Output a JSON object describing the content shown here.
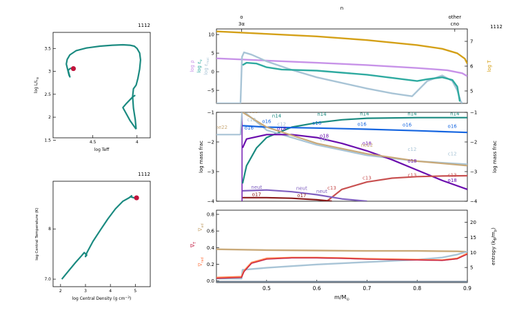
{
  "chart_data": [
    {
      "type": "line",
      "panel": "hr",
      "model_number": "1112",
      "xlabel": "log Teff",
      "ylabel": "log L/L",
      "ylabel_subscript": "⊙",
      "x_reversed": true,
      "xlim": [
        4.95,
        3.85
      ],
      "ylim": [
        1.55,
        3.85
      ],
      "xticks": [
        {
          "v": 4.5,
          "label": "4.5"
        },
        {
          "v": 4.0,
          "label": "4"
        }
      ],
      "yticks": [
        {
          "v": 1.5,
          "label": "1.5"
        },
        {
          "v": 2.0,
          "label": "2"
        },
        {
          "v": 2.5,
          "label": "2.5"
        },
        {
          "v": 3.0,
          "label": "3"
        },
        {
          "v": 3.5,
          "label": "3.5"
        }
      ],
      "track_color": "#1a8a80",
      "marker_color": "#c0143c",
      "series": [
        {
          "x": [
            4.02,
            4.05,
            4.08,
            4.12,
            4.16,
            4.12,
            4.08,
            4.04,
            4.01
          ],
          "y": [
            2.48,
            2.44,
            2.38,
            2.3,
            2.21,
            2.07,
            1.93,
            1.82,
            1.74
          ]
        },
        {
          "x": [
            4.01,
            4.02,
            4.04,
            4.05,
            4.04,
            4.01,
            3.99,
            3.97,
            3.96,
            3.97,
            4.0,
            4.03,
            4.08,
            4.16,
            4.28,
            4.42,
            4.57,
            4.69,
            4.76,
            4.79,
            4.8,
            4.79,
            4.78,
            4.77,
            4.76,
            4.77,
            4.78,
            4.76,
            4.74,
            4.72
          ],
          "y": [
            1.74,
            1.95,
            2.2,
            2.45,
            2.62,
            2.7,
            2.85,
            3.05,
            3.25,
            3.4,
            3.5,
            3.55,
            3.57,
            3.58,
            3.57,
            3.55,
            3.51,
            3.45,
            3.36,
            3.26,
            3.16,
            3.08,
            3.0,
            2.92,
            2.88,
            2.95,
            3.02,
            3.06,
            3.07,
            3.06
          ]
        }
      ],
      "current_point": {
        "x": 4.72,
        "y": 3.06
      }
    },
    {
      "type": "line",
      "panel": "center",
      "model_number": "1112",
      "xlabel": "log Central Density (g cm",
      "xlabel_sup": "−3",
      "xlabel_close": ")",
      "ylabel": "log Central Temperature (K)",
      "xlim": [
        1.7,
        5.6
      ],
      "ylim": [
        6.85,
        8.95
      ],
      "xticks": [
        {
          "v": 2,
          "label": "2"
        },
        {
          "v": 3,
          "label": "3"
        },
        {
          "v": 4,
          "label": "4"
        },
        {
          "v": 5,
          "label": "5"
        }
      ],
      "yticks": [
        {
          "v": 7,
          "label": "7.0"
        },
        {
          "v": 8,
          "label": "8"
        }
      ],
      "track_color": "#1a8a80",
      "marker_color": "#c0143c",
      "series": [
        {
          "x": [
            2.05,
            2.3,
            2.6,
            2.85,
            2.95,
            3.05,
            3.0,
            3.05,
            3.3,
            3.6,
            3.9,
            4.2,
            4.5,
            4.75,
            4.85,
            4.8,
            4.95,
            5.05
          ],
          "y": [
            7.0,
            7.15,
            7.33,
            7.47,
            7.53,
            7.48,
            7.45,
            7.52,
            7.75,
            7.98,
            8.2,
            8.4,
            8.55,
            8.62,
            8.66,
            8.64,
            8.62,
            8.62
          ]
        }
      ],
      "current_point": {
        "x": 5.05,
        "y": 8.62
      }
    },
    {
      "type": "line",
      "panel": "profile-top",
      "model_number": "1112",
      "top_axis_title": "n",
      "top_labels": [
        {
          "x": 0.45,
          "line1": "o",
          "line2": "3α"
        },
        {
          "x": 0.875,
          "line1": "other",
          "line2": "cno"
        }
      ],
      "left_labels": [
        {
          "text": "log ρ",
          "color": "#c792e8"
        },
        {
          "text": "log ε",
          "sub": "ν",
          "color": "#2eaaa0"
        },
        {
          "text": "log ε",
          "sub": "nuc",
          "color": "#a8c4d6"
        }
      ],
      "right_label": {
        "text": "log T",
        "color": "#d4a017"
      },
      "xlim": [
        0.4,
        0.9
      ],
      "ylim_left": [
        -8.5,
        11.5
      ],
      "ylim_right": [
        4.5,
        7.5
      ],
      "yticks_left": [
        {
          "v": 10,
          "label": "10"
        },
        {
          "v": 5,
          "label": "5"
        },
        {
          "v": 0,
          "label": "0"
        },
        {
          "v": -5,
          "label": "−5"
        }
      ],
      "yticks_right": [
        {
          "v": 5,
          "label": "5"
        },
        {
          "v": 6,
          "label": "6"
        },
        {
          "v": 7,
          "label": "7"
        }
      ],
      "series": [
        {
          "name": "log T",
          "axis": "right",
          "color": "#d4a017",
          "x": [
            0.4,
            0.5,
            0.6,
            0.7,
            0.8,
            0.85,
            0.88,
            0.895,
            0.9
          ],
          "y": [
            7.4,
            7.3,
            7.2,
            7.05,
            6.85,
            6.7,
            6.52,
            6.3,
            6.1
          ]
        },
        {
          "name": "log ρ",
          "axis": "left",
          "color": "#c792e8",
          "x": [
            0.4,
            0.5,
            0.6,
            0.7,
            0.8,
            0.86,
            0.89,
            0.9
          ],
          "y": [
            3.6,
            3.0,
            2.4,
            1.8,
            1.0,
            0.4,
            -0.4,
            -1.2
          ]
        },
        {
          "name": "log ε nuc",
          "axis": "left",
          "color": "#a8c4d6",
          "x": [
            0.4,
            0.448,
            0.451,
            0.455,
            0.47,
            0.5,
            0.55,
            0.6,
            0.65,
            0.7,
            0.75,
            0.79,
            0.82,
            0.85,
            0.87,
            0.88,
            0.887,
            0.89
          ],
          "y": [
            -8.5,
            -8.5,
            4.0,
            5.2,
            4.6,
            2.8,
            0.5,
            -1.5,
            -3.0,
            -4.5,
            -5.8,
            -6.6,
            -2.5,
            -1.0,
            -2.5,
            -5.0,
            -8.0,
            -8.5
          ]
        },
        {
          "name": "log ε ν",
          "axis": "left",
          "color": "#2eaaa0",
          "x": [
            0.452,
            0.46,
            0.48,
            0.5,
            0.53,
            0.6,
            0.7,
            0.8,
            0.82,
            0.85,
            0.87,
            0.88,
            0.885
          ],
          "y": [
            1.8,
            2.4,
            2.2,
            1.2,
            0.6,
            0.3,
            -0.8,
            -2.5,
            -2.0,
            -1.5,
            -2.2,
            -4.0,
            -8.0
          ]
        }
      ]
    },
    {
      "type": "line",
      "panel": "profile-mid",
      "ylabel_left": "log mass frac",
      "ylabel_right": "log mass frac",
      "xlim": [
        0.4,
        0.9
      ],
      "ylim": [
        -4,
        -1
      ],
      "yticks": [
        {
          "v": -1,
          "label": "−1"
        },
        {
          "v": -2,
          "label": "−2"
        },
        {
          "v": -3,
          "label": "−3"
        },
        {
          "v": -4,
          "label": "−4"
        }
      ],
      "series": [
        {
          "name": "n14",
          "color": "#1a8a80",
          "x": [
            0.452,
            0.46,
            0.48,
            0.5,
            0.55,
            0.6,
            0.65,
            0.7,
            0.8,
            0.9
          ],
          "y": [
            -3.4,
            -2.8,
            -2.2,
            -1.85,
            -1.5,
            -1.35,
            -1.25,
            -1.2,
            -1.18,
            -1.18
          ]
        },
        {
          "name": "c12",
          "color": "#a8c4d6",
          "x": [
            0.4,
            0.448,
            0.451,
            0.46,
            0.5,
            0.6,
            0.7,
            0.8,
            0.9
          ],
          "y": [
            -1.75,
            -1.75,
            -1.0,
            -1.05,
            -1.6,
            -2.1,
            -2.45,
            -2.65,
            -2.75
          ]
        },
        {
          "name": "o16",
          "color": "#1565e0",
          "x": [
            0.452,
            0.5,
            0.6,
            0.7,
            0.8,
            0.9
          ],
          "y": [
            -1.45,
            -1.5,
            -1.53,
            -1.57,
            -1.62,
            -1.68
          ]
        },
        {
          "name": "o18",
          "color": "#6a0dad",
          "x": [
            0.452,
            0.46,
            0.5,
            0.55,
            0.6,
            0.65,
            0.7,
            0.75,
            0.8,
            0.85,
            0.9
          ],
          "y": [
            -2.2,
            -1.9,
            -1.75,
            -1.75,
            -1.85,
            -2.05,
            -2.3,
            -2.6,
            -2.95,
            -3.3,
            -3.6
          ]
        },
        {
          "name": "c13",
          "color": "#c85050",
          "x": [
            0.62,
            0.65,
            0.7,
            0.75,
            0.8,
            0.85,
            0.9
          ],
          "y": [
            -4.0,
            -3.6,
            -3.35,
            -3.22,
            -3.17,
            -3.15,
            -3.14
          ]
        },
        {
          "name": "ne22",
          "color": "#c9a978",
          "x": [
            0.452,
            0.5,
            0.6,
            0.7,
            0.8,
            0.9
          ],
          "y": [
            -1.0,
            -1.5,
            -2.05,
            -2.4,
            -2.65,
            -2.8
          ]
        },
        {
          "name": "neut",
          "color": "#8060c0",
          "x": [
            0.452,
            0.5,
            0.55,
            0.6,
            0.65,
            0.7
          ],
          "y": [
            -3.65,
            -3.62,
            -3.68,
            -3.78,
            -3.92,
            -4.0
          ]
        },
        {
          "name": "o17",
          "color": "#8b1a1a",
          "x": [
            0.452,
            0.5,
            0.55,
            0.6,
            0.63
          ],
          "y": [
            -3.88,
            -3.88,
            -3.9,
            -3.95,
            -4.0
          ]
        }
      ],
      "labels": [
        {
          "text": "ne22",
          "color": "#c9a978",
          "x": 0.47,
          "y": -1.02
        },
        {
          "text": "n14",
          "color": "#1a8a80",
          "x": 0.52,
          "y": -1.18
        },
        {
          "text": "n14",
          "color": "#1a8a80",
          "x": 0.61,
          "y": -1.12
        },
        {
          "text": "n14",
          "color": "#1a8a80",
          "x": 0.695,
          "y": -1.1
        },
        {
          "text": "n14",
          "color": "#1a8a80",
          "x": 0.79,
          "y": -1.1
        },
        {
          "text": "n14",
          "color": "#1a8a80",
          "x": 0.875,
          "y": -1.1
        },
        {
          "text": "c12",
          "color": "#a8c4d6",
          "x": 0.47,
          "y": -1.3
        },
        {
          "text": "o16",
          "color": "#1565e0",
          "x": 0.5,
          "y": -1.36
        },
        {
          "text": "o16",
          "color": "#1565e0",
          "x": 0.6,
          "y": -1.42
        },
        {
          "text": "o16",
          "color": "#1565e0",
          "x": 0.69,
          "y": -1.45
        },
        {
          "text": "o16",
          "color": "#1565e0",
          "x": 0.78,
          "y": -1.48
        },
        {
          "text": "o16",
          "color": "#1565e0",
          "x": 0.87,
          "y": -1.52
        },
        {
          "text": "ne22",
          "color": "#c9a978",
          "x": 0.41,
          "y": -1.56
        },
        {
          "text": "o16",
          "color": "#1565e0",
          "x": 0.465,
          "y": -1.58
        },
        {
          "text": "c12",
          "color": "#a8c4d6",
          "x": 0.53,
          "y": -1.45
        },
        {
          "text": "o18",
          "color": "#6a0dad",
          "x": 0.53,
          "y": -1.6
        },
        {
          "text": "o18",
          "color": "#6a0dad",
          "x": 0.615,
          "y": -1.85
        },
        {
          "text": "c12",
          "color": "#a8c4d6",
          "x": 0.615,
          "y": -1.98
        },
        {
          "text": "o18",
          "color": "#6a0dad",
          "x": 0.7,
          "y": -2.1
        },
        {
          "text": "ne22",
          "color": "#c9a978",
          "x": 0.7,
          "y": -2.16
        },
        {
          "text": "c12",
          "color": "#a8c4d6",
          "x": 0.79,
          "y": -2.3
        },
        {
          "text": "c12",
          "color": "#a8c4d6",
          "x": 0.87,
          "y": -2.45
        },
        {
          "text": "o18",
          "color": "#6a0dad",
          "x": 0.79,
          "y": -2.7
        },
        {
          "text": "c13",
          "color": "#c85050",
          "x": 0.7,
          "y": -3.27
        },
        {
          "text": "c13",
          "color": "#c85050",
          "x": 0.79,
          "y": -3.18
        },
        {
          "text": "c13",
          "color": "#c85050",
          "x": 0.87,
          "y": -3.18
        },
        {
          "text": "o18",
          "color": "#6a0dad",
          "x": 0.87,
          "y": -3.35
        },
        {
          "text": "c13",
          "color": "#c85050",
          "x": 0.63,
          "y": -3.6
        },
        {
          "text": "neut",
          "color": "#8060c0",
          "x": 0.48,
          "y": -3.58
        },
        {
          "text": "neut",
          "color": "#8060c0",
          "x": 0.57,
          "y": -3.62
        },
        {
          "text": "neut",
          "color": "#8060c0",
          "x": 0.61,
          "y": -3.72
        },
        {
          "text": "o17",
          "color": "#8b1a1a",
          "x": 0.48,
          "y": -3.82
        },
        {
          "text": "o17",
          "color": "#8b1a1a",
          "x": 0.57,
          "y": -3.86
        }
      ]
    },
    {
      "type": "line",
      "panel": "profile-bottom",
      "xlabel": "m/M",
      "xlabel_sub": "⊙",
      "left_label_top": {
        "text": "∇",
        "sub": "ad",
        "color": "#c9a978"
      },
      "left_label_mid": {
        "text": "∇",
        "sub": "T",
        "color": "#c0143c"
      },
      "left_label_bot": {
        "text": "∇",
        "sub": "rad",
        "color": "#ff7f50"
      },
      "right_label": "entropy (k",
      "right_label_sub": "B",
      "right_label_mid": "/m",
      "right_label_sub2": "p",
      "right_label_close": ")",
      "xlim": [
        0.4,
        0.9
      ],
      "ylim_left": [
        -0.02,
        0.85
      ],
      "ylim_right": [
        0,
        24
      ],
      "xticks": [
        {
          "v": 0.5,
          "label": "0.5"
        },
        {
          "v": 0.6,
          "label": "0.6"
        },
        {
          "v": 0.7,
          "label": "0.7"
        },
        {
          "v": 0.8,
          "label": "0.8"
        },
        {
          "v": 0.9,
          "label": "0.9"
        }
      ],
      "yticks_left": [
        {
          "v": 0.0,
          "label": "0.0"
        },
        {
          "v": 0.2,
          "label": "0.2"
        },
        {
          "v": 0.4,
          "label": "0.4"
        },
        {
          "v": 0.6,
          "label": "0.6"
        },
        {
          "v": 0.8,
          "label": "0.8"
        }
      ],
      "yticks_right": [
        {
          "v": 5,
          "label": "5"
        },
        {
          "v": 10,
          "label": "10"
        },
        {
          "v": 15,
          "label": "15"
        },
        {
          "v": 20,
          "label": "20"
        }
      ],
      "series": [
        {
          "name": "grad ad",
          "axis": "left",
          "color": "#c9a978",
          "x": [
            0.4,
            0.5,
            0.6,
            0.7,
            0.8,
            0.88,
            0.9
          ],
          "y": [
            0.38,
            0.37,
            0.365,
            0.36,
            0.36,
            0.355,
            0.35
          ]
        },
        {
          "name": "entropy",
          "axis": "right",
          "color": "#a8c4d6",
          "x": [
            0.4,
            0.45,
            0.452,
            0.5,
            0.6,
            0.7,
            0.8,
            0.85,
            0.88,
            0.9
          ],
          "y": [
            1.3,
            1.3,
            4.2,
            4.9,
            6.0,
            6.8,
            7.6,
            8.3,
            9.3,
            10.3
          ]
        },
        {
          "name": "grad rad",
          "axis": "left",
          "color": "#ff7f50",
          "x": [
            0.4,
            0.45,
            0.455,
            0.47,
            0.5,
            0.55,
            0.6,
            0.65,
            0.7,
            0.75,
            0.8,
            0.85,
            0.88,
            0.9
          ],
          "y": [
            0.04,
            0.05,
            0.12,
            0.22,
            0.27,
            0.28,
            0.28,
            0.275,
            0.265,
            0.26,
            0.255,
            0.25,
            0.27,
            0.33
          ]
        },
        {
          "name": "grad T",
          "axis": "left",
          "color": "#c0143c",
          "x": [
            0.4,
            0.45,
            0.455,
            0.47,
            0.5,
            0.55,
            0.6,
            0.65,
            0.7,
            0.75,
            0.8,
            0.85,
            0.88,
            0.9
          ],
          "y": [
            0.03,
            0.04,
            0.11,
            0.21,
            0.26,
            0.275,
            0.275,
            0.27,
            0.26,
            0.255,
            0.25,
            0.245,
            0.265,
            0.32
          ]
        },
        {
          "name": "base",
          "axis": "left",
          "color": "#708090",
          "x": [
            0.4,
            0.9
          ],
          "y": [
            -0.01,
            -0.01
          ]
        }
      ]
    }
  ]
}
